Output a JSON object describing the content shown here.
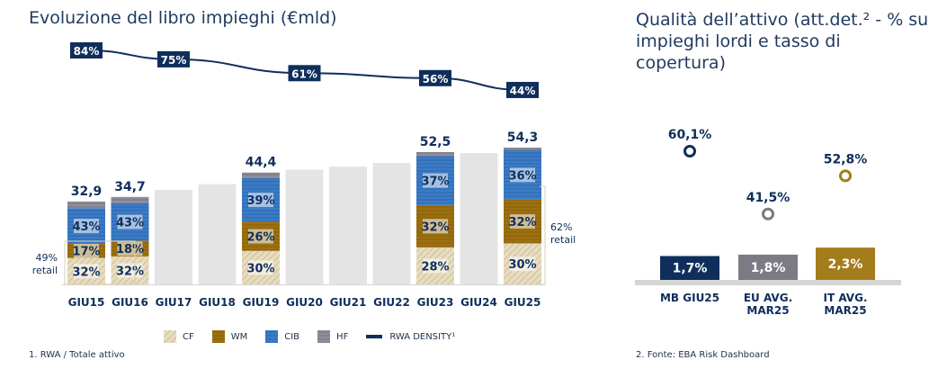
{
  "titles": {
    "left": "Evoluzione del libro impieghi (€mld)",
    "right": "Qualità dell’attivo (att.det.² - % su impieghi lordi e tasso di copertura)"
  },
  "footnotes": {
    "left": "1. RWA / Totale attivo",
    "right": "2. Fonte: EBA Risk Dashboard"
  },
  "legend": [
    {
      "key": "CF",
      "label": "CF"
    },
    {
      "key": "WM",
      "label": "WM"
    },
    {
      "key": "CIB",
      "label": "CIB"
    },
    {
      "key": "HF",
      "label": "HF"
    },
    {
      "key": "RWA",
      "label": "RWA DENSITY¹"
    }
  ],
  "colors": {
    "cf": "#d9ccaa",
    "wm": "#9c7010",
    "cib": "#3b7bc7",
    "hf": "#8a8a96",
    "grey_bar": "#e4e4e4",
    "navy": "#0f2e5b",
    "gold": "#a47c1c",
    "slate": "#7b7b85"
  },
  "chart_data": [
    {
      "type": "bar",
      "title": "Evoluzione del libro impieghi (€mld)",
      "categories": [
        "GIU15",
        "GIU16",
        "GIU17",
        "GIU18",
        "GIU19",
        "GIU20",
        "GIU21",
        "GIU22",
        "GIU23",
        "GIU24",
        "GIU25"
      ],
      "totals": [
        32.9,
        34.7,
        37.5,
        39.8,
        44.4,
        45.5,
        46.7,
        48.2,
        52.5,
        52.1,
        54.3
      ],
      "total_labels": [
        "32,9",
        "34,7",
        "",
        "",
        "44,4",
        "",
        "",
        "",
        "52,5",
        "",
        "54,3"
      ],
      "stacked_categories": [
        "GIU15",
        "GIU16",
        "GIU19",
        "GIU23",
        "GIU25"
      ],
      "series": [
        {
          "name": "CF",
          "share_pct": [
            32,
            32,
            30,
            28,
            30
          ],
          "labels": [
            "32%",
            "32%",
            "30%",
            "28%",
            "30%"
          ]
        },
        {
          "name": "WM",
          "share_pct": [
            17,
            18,
            26,
            32,
            32
          ],
          "labels": [
            "17%",
            "18%",
            "26%",
            "32%",
            "32%"
          ]
        },
        {
          "name": "CIB",
          "share_pct": [
            43,
            43,
            39,
            37,
            36
          ],
          "labels": [
            "43%",
            "43%",
            "39%",
            "37%",
            "36%"
          ]
        },
        {
          "name": "HF",
          "share_pct": [
            8,
            7,
            5,
            3,
            2
          ],
          "labels": [
            "",
            "",
            "",
            "",
            ""
          ]
        }
      ],
      "rwa_density": {
        "name": "RWA DENSITY¹",
        "points": [
          {
            "category": "GIU15",
            "value": 84,
            "label": "84%"
          },
          {
            "category": "GIU17",
            "value": 75,
            "label": "75%"
          },
          {
            "category": "GIU20",
            "value": 61,
            "label": "61%"
          },
          {
            "category": "GIU23",
            "value": 56,
            "label": "56%"
          },
          {
            "category": "GIU25",
            "value": 44,
            "label": "44%"
          }
        ]
      },
      "annotations": [
        {
          "pct": "49%",
          "text": "retail",
          "spans": [
            "GIU15",
            "GIU16"
          ],
          "side": "left"
        },
        {
          "pct": "62%",
          "text": "retail",
          "spans": [
            "GIU23",
            "GIU25"
          ],
          "side": "right"
        }
      ],
      "ylim": [
        0,
        80
      ]
    },
    {
      "type": "bar",
      "title": "Qualità dell’attivo (att.det.² - % su impieghi lordi e tasso di copertura)",
      "categories": [
        "MB GIU25",
        "EU AVG. MAR25",
        "IT AVG. MAR25"
      ],
      "category_lines": [
        [
          "MB GIU25"
        ],
        [
          "EU AVG.",
          "MAR25"
        ],
        [
          "IT AVG.",
          "MAR25"
        ]
      ],
      "values": [
        1.7,
        1.8,
        2.3
      ],
      "value_labels": [
        "1,7%",
        "1,8%",
        "2,3%"
      ],
      "coverage": [
        60.1,
        41.5,
        52.8
      ],
      "coverage_labels": [
        "60,1%",
        "41,5%",
        "52,8%"
      ]
    }
  ]
}
